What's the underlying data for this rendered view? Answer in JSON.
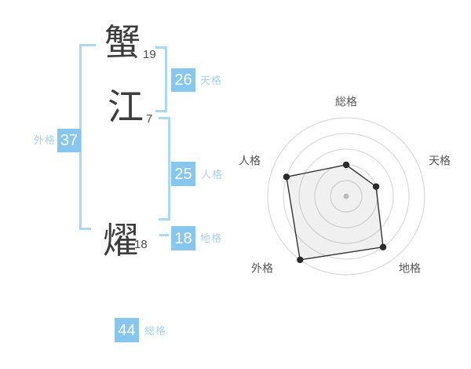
{
  "page": {
    "background": "#ffffff"
  },
  "name_panel": {
    "characters": [
      {
        "glyph": "蟹",
        "strokes": "19"
      },
      {
        "glyph": "江",
        "strokes": "7"
      },
      {
        "glyph": "燿",
        "strokes": "18"
      }
    ],
    "scores": [
      {
        "id": "tenkaku",
        "value": "26",
        "label": "天格"
      },
      {
        "id": "jinkaku",
        "value": "25",
        "label": "人格"
      },
      {
        "id": "chikaku",
        "value": "18",
        "label": "地格"
      },
      {
        "id": "gaikaku",
        "value": "37",
        "label": "外格"
      },
      {
        "id": "soukaku",
        "value": "44",
        "label": "総格"
      }
    ],
    "colors": {
      "box": "#87C6EF",
      "label": "#A6D4F2",
      "bracket": "#A9D9F6",
      "kanji": "#3D3D3D",
      "strokes_text": "#4D4D4D"
    }
  },
  "chart_data": {
    "type": "radar",
    "title": "",
    "categories": [
      "総格",
      "天格",
      "地格",
      "外格",
      "人格"
    ],
    "values": [
      2,
      2,
      4,
      5,
      4
    ],
    "max": 5,
    "rings": 5,
    "grid": "circular-rings-no-spokes",
    "legend": false,
    "colors": {
      "grid": "#DADADA",
      "polygon_stroke": "#333333",
      "polygon_fill": "rgba(0,0,0,0.06)",
      "point": "#2B2B2B",
      "center_dot": "#BBBBBB",
      "label": "#555555"
    }
  }
}
